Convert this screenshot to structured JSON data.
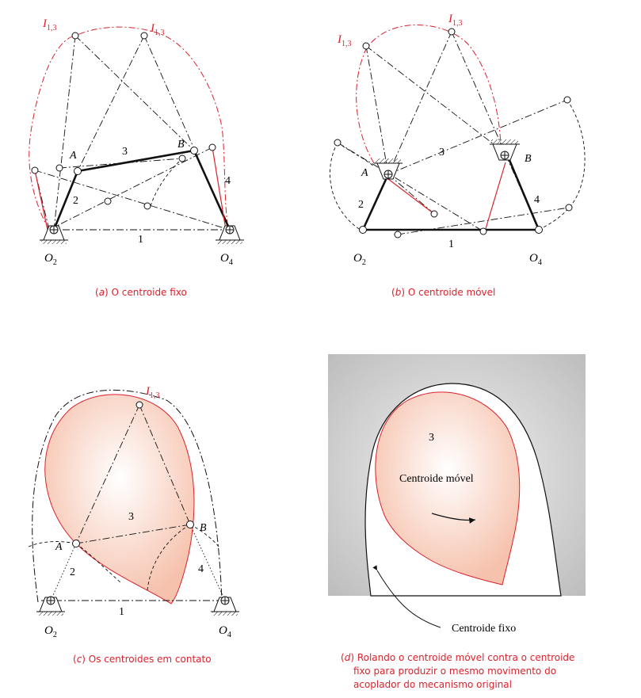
{
  "colors": {
    "accent": "#d9232e",
    "ink": "#111111",
    "gray_bg": "#cfcfcf",
    "fill_centrode": "#f7c9b7"
  },
  "labels": {
    "instant_center": "I",
    "instant_center_sub": "1,3",
    "pivot_O2_main": "O",
    "pivot_O2_sub": "2",
    "pivot_O4_main": "O",
    "pivot_O4_sub": "4",
    "point_A": "A",
    "point_B": "B",
    "link_1": "1",
    "link_2": "2",
    "link_3": "3",
    "link_4": "4"
  },
  "panels": {
    "a": {
      "letter": "a",
      "caption": "O centroide fixo"
    },
    "b": {
      "letter": "b",
      "caption": "O centroide móvel"
    },
    "c": {
      "letter": "c",
      "caption": "Os centroides em contato"
    },
    "d": {
      "letter": "d",
      "caption_line1": "Rolando o centroide móvel contra o centroide",
      "caption_line2": "fixo para produzir o mesmo movimento do",
      "caption_line3": "acoplador do mecanismo original",
      "moving_label": "Centroide móvel",
      "fixed_label": "Centroide fixo",
      "coupler_number": "3"
    }
  }
}
